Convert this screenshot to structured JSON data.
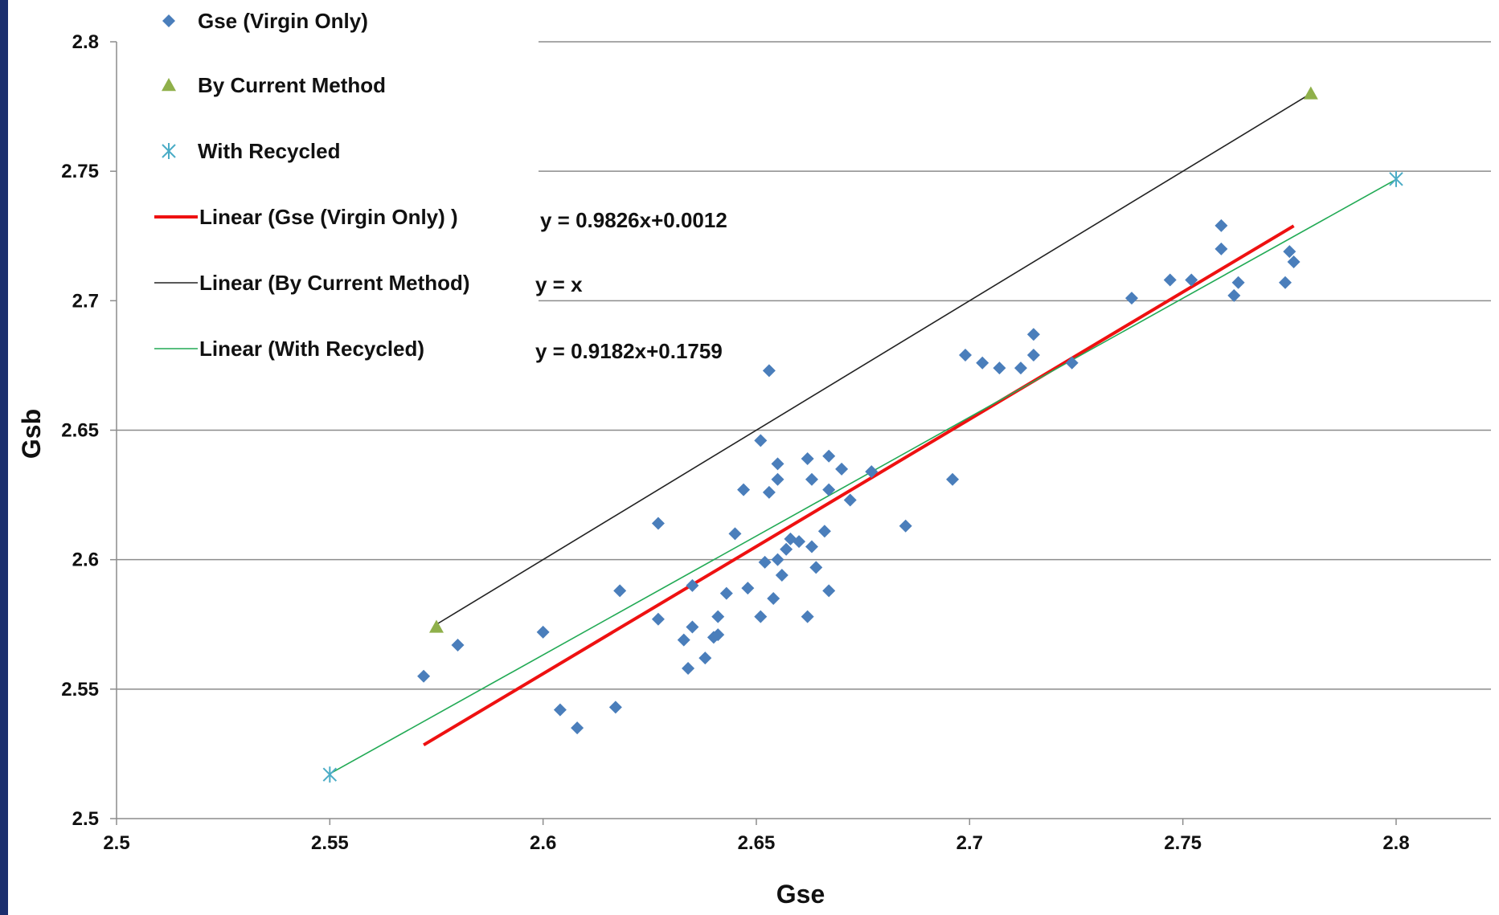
{
  "chart_data": {
    "type": "scatter",
    "xlabel": "Gse",
    "ylabel": "Gsb",
    "xlim": [
      2.5,
      2.8
    ],
    "ylim": [
      2.5,
      2.8
    ],
    "x_ticks": [
      "2.5",
      "2.55",
      "2.6",
      "2.65",
      "2.7",
      "2.75",
      "2.8"
    ],
    "y_ticks": [
      "2.5",
      "2.55",
      "2.6",
      "2.65",
      "2.7",
      "2.75",
      "2.8"
    ],
    "grid": "horizontal",
    "legend_position": "top-left",
    "colors": {
      "virgin": "#4a7ebb",
      "current": "#8fb04a",
      "recycled": "#4bacc6",
      "trend_virgin": "#ee1111",
      "trend_current": "#222222",
      "trend_recycled": "#22aa55",
      "grid": "#8c8c8c",
      "axis": "#8c8c8c"
    },
    "series": [
      {
        "name": "Gse (Virgin Only)",
        "marker": "diamond",
        "color_key": "virgin",
        "points": [
          [
            2.572,
            2.555
          ],
          [
            2.58,
            2.567
          ],
          [
            2.6,
            2.572
          ],
          [
            2.604,
            2.542
          ],
          [
            2.608,
            2.535
          ],
          [
            2.617,
            2.543
          ],
          [
            2.618,
            2.588
          ],
          [
            2.627,
            2.577
          ],
          [
            2.627,
            2.614
          ],
          [
            2.633,
            2.569
          ],
          [
            2.634,
            2.558
          ],
          [
            2.635,
            2.574
          ],
          [
            2.635,
            2.59
          ],
          [
            2.638,
            2.562
          ],
          [
            2.64,
            2.57
          ],
          [
            2.641,
            2.578
          ],
          [
            2.641,
            2.571
          ],
          [
            2.643,
            2.587
          ],
          [
            2.645,
            2.61
          ],
          [
            2.647,
            2.627
          ],
          [
            2.648,
            2.589
          ],
          [
            2.651,
            2.578
          ],
          [
            2.651,
            2.646
          ],
          [
            2.652,
            2.599
          ],
          [
            2.653,
            2.626
          ],
          [
            2.653,
            2.673
          ],
          [
            2.654,
            2.585
          ],
          [
            2.655,
            2.6
          ],
          [
            2.655,
            2.631
          ],
          [
            2.655,
            2.637
          ],
          [
            2.656,
            2.594
          ],
          [
            2.657,
            2.604
          ],
          [
            2.658,
            2.608
          ],
          [
            2.66,
            2.607
          ],
          [
            2.662,
            2.639
          ],
          [
            2.662,
            2.578
          ],
          [
            2.663,
            2.605
          ],
          [
            2.663,
            2.631
          ],
          [
            2.664,
            2.597
          ],
          [
            2.666,
            2.611
          ],
          [
            2.667,
            2.588
          ],
          [
            2.667,
            2.627
          ],
          [
            2.667,
            2.64
          ],
          [
            2.67,
            2.635
          ],
          [
            2.672,
            2.623
          ],
          [
            2.677,
            2.634
          ],
          [
            2.685,
            2.613
          ],
          [
            2.696,
            2.631
          ],
          [
            2.699,
            2.679
          ],
          [
            2.703,
            2.676
          ],
          [
            2.707,
            2.674
          ],
          [
            2.712,
            2.674
          ],
          [
            2.715,
            2.679
          ],
          [
            2.715,
            2.687
          ],
          [
            2.724,
            2.676
          ],
          [
            2.738,
            2.701
          ],
          [
            2.747,
            2.708
          ],
          [
            2.752,
            2.708
          ],
          [
            2.759,
            2.729
          ],
          [
            2.759,
            2.72
          ],
          [
            2.762,
            2.702
          ],
          [
            2.763,
            2.707
          ],
          [
            2.774,
            2.707
          ],
          [
            2.775,
            2.719
          ],
          [
            2.776,
            2.715
          ]
        ]
      },
      {
        "name": "By Current Method",
        "marker": "triangle",
        "color_key": "current",
        "points": [
          [
            2.575,
            2.574
          ],
          [
            2.78,
            2.78
          ]
        ]
      },
      {
        "name": "With Recycled",
        "marker": "star",
        "color_key": "recycled",
        "points": [
          [
            2.55,
            2.517
          ],
          [
            2.8,
            2.747
          ]
        ]
      }
    ],
    "trendlines": [
      {
        "name": "Linear (Gse (Virgin Only) )",
        "color_key": "trend_virgin",
        "weight": "thick",
        "equation": "y = 0.9826x+0.0012",
        "x_range": [
          2.572,
          2.776
        ],
        "slope": 0.9826,
        "intercept": 0.0012
      },
      {
        "name": "Linear (By Current Method)",
        "color_key": "trend_current",
        "weight": "thin",
        "equation": "y = x",
        "x_range": [
          2.575,
          2.78
        ],
        "slope": 1.0,
        "intercept": 0.0
      },
      {
        "name": "Linear (With Recycled)",
        "color_key": "trend_recycled",
        "weight": "thin",
        "equation": "y = 0.9182x+0.1759",
        "x_range": [
          2.55,
          2.8
        ],
        "slope": 0.9182,
        "intercept": 0.1759
      }
    ]
  }
}
